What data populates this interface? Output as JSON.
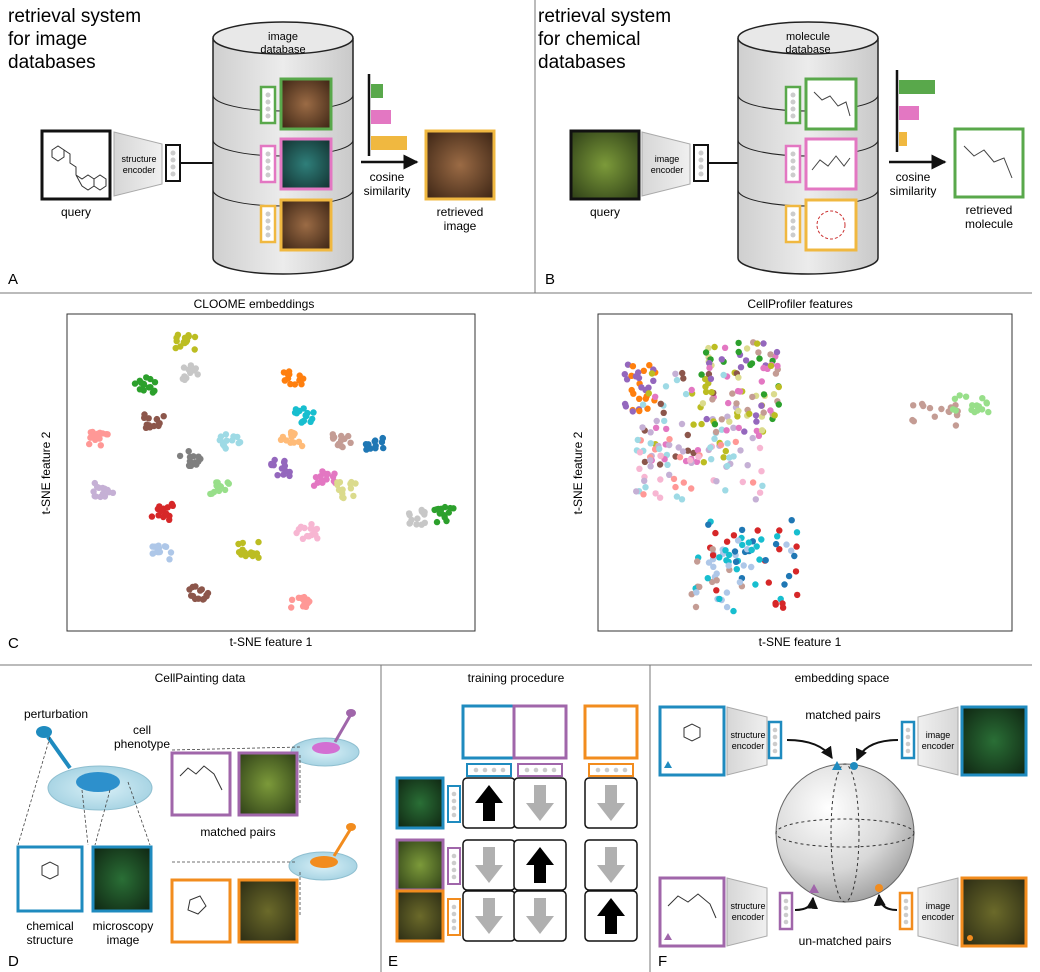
{
  "panel_letters": {
    "a": "A",
    "b": "B",
    "c": "C",
    "d": "D",
    "e": "E",
    "f": "F"
  },
  "panel_a": {
    "title_lines": [
      "retrieval system",
      "for image",
      "databases"
    ],
    "database_lines": [
      "image",
      "database"
    ],
    "encoder_lines": [
      "structure",
      "encoder"
    ],
    "query": "query",
    "similarity_lines": [
      "cosine",
      "similarity"
    ],
    "result_lines": [
      "retrieved",
      "image"
    ]
  },
  "panel_b": {
    "title_lines": [
      "retrieval system",
      "for chemical",
      "databases"
    ],
    "database_lines": [
      "molecule",
      "database"
    ],
    "encoder_lines": [
      "image",
      "encoder"
    ],
    "query": "query",
    "similarity_lines": [
      "cosine",
      "similarity"
    ],
    "result_lines": [
      "retrieved",
      "molecule"
    ]
  },
  "panel_c": {
    "left_title": "CLOOME embeddings",
    "right_title": "CellProfiler features",
    "xlabel": "t-SNE feature 1",
    "ylabel": "t-SNE feature 2"
  },
  "panel_d": {
    "title": "CellPainting data",
    "perturbation": "perturbation",
    "phenotype_lines": [
      "cell",
      "phenotype"
    ],
    "matched": "matched pairs",
    "chem_lines": [
      "chemical",
      "structure"
    ],
    "micro_lines": [
      "microscopy",
      "image"
    ]
  },
  "panel_e": {
    "title": "training procedure"
  },
  "panel_f": {
    "title": "embedding space",
    "matched": "matched pairs",
    "unmatched": "un-matched pairs",
    "struct_lines": [
      "structure",
      "encoder"
    ],
    "image_lines": [
      "image",
      "encoder"
    ]
  },
  "colors": {
    "green": "#59a84b",
    "pink": "#e377c2",
    "yellow": "#f0b840",
    "blue": "#1f8bbf",
    "purple": "#a066aa",
    "orange": "#f28c1e",
    "gray": "#bdbdbd"
  },
  "similarity_scores": {
    "panel_a": [
      0.15,
      0.25,
      0.45
    ],
    "panel_b": [
      0.45,
      0.25,
      0.1
    ]
  }
}
